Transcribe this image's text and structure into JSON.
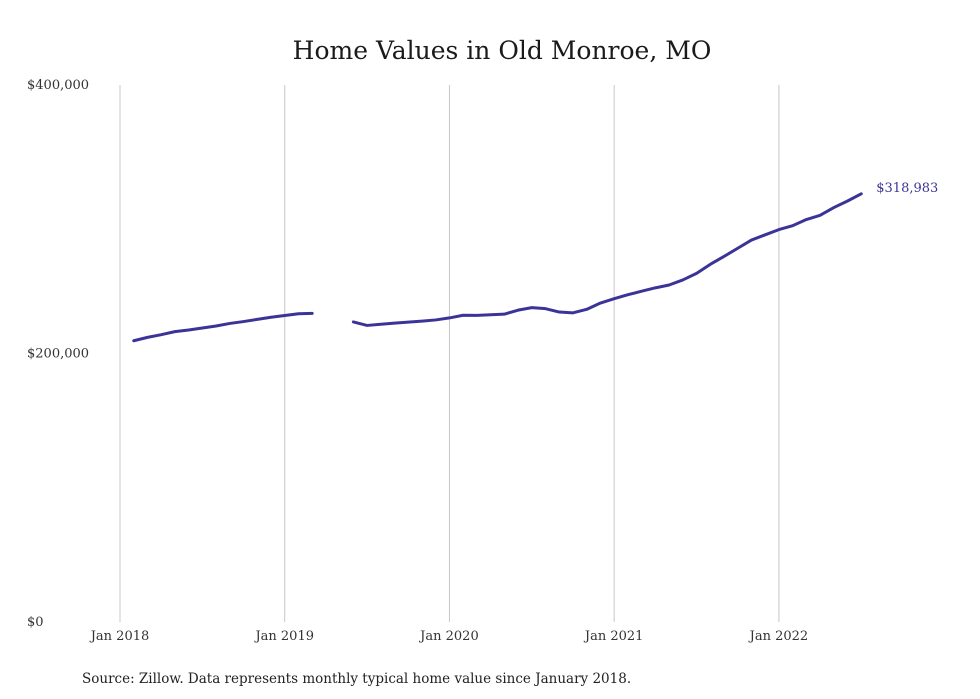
{
  "chart_data": {
    "type": "line",
    "title": "Home Values in Old Monroe, MO",
    "xlabel": "",
    "ylabel": "",
    "ylim": [
      0,
      400000
    ],
    "xlim": [
      "2018-01",
      "2022-08"
    ],
    "y_ticks": [
      0,
      200000,
      400000
    ],
    "y_tick_labels": [
      "$0",
      "$200,000",
      "$400,000"
    ],
    "x_ticks": [
      "2018-01",
      "2019-01",
      "2020-01",
      "2021-01",
      "2022-01"
    ],
    "x_tick_labels": [
      "Jan 2018",
      "Jan 2019",
      "Jan 2020",
      "Jan 2021",
      "Jan 2022"
    ],
    "grid": {
      "vertical": true,
      "horizontal": false
    },
    "legend": "none",
    "line_color": "#3b3498",
    "grid_color": "#c8c8c8",
    "series": [
      {
        "values": [
          {
            "x": "2018-02",
            "y": 209500
          },
          {
            "x": "2018-03",
            "y": 212000
          },
          {
            "x": "2018-04",
            "y": 214000
          },
          {
            "x": "2018-05",
            "y": 216300
          },
          {
            "x": "2018-06",
            "y": 217500
          },
          {
            "x": "2018-07",
            "y": 219000
          },
          {
            "x": "2018-08",
            "y": 220500
          },
          {
            "x": "2018-09",
            "y": 222400
          },
          {
            "x": "2018-10",
            "y": 223800
          },
          {
            "x": "2018-11",
            "y": 225400
          },
          {
            "x": "2018-12",
            "y": 227000
          },
          {
            "x": "2019-01",
            "y": 228300
          },
          {
            "x": "2019-02",
            "y": 229600
          },
          {
            "x": "2019-03",
            "y": 229900
          },
          {
            "x": "2019-04",
            "y": null
          },
          {
            "x": "2019-05",
            "y": null
          },
          {
            "x": "2019-06",
            "y": 223500
          },
          {
            "x": "2019-07",
            "y": 220900
          },
          {
            "x": "2019-08",
            "y": 221800
          },
          {
            "x": "2019-09",
            "y": 222600
          },
          {
            "x": "2019-10",
            "y": 223400
          },
          {
            "x": "2019-11",
            "y": 224100
          },
          {
            "x": "2019-12",
            "y": 225000
          },
          {
            "x": "2020-01",
            "y": 226500
          },
          {
            "x": "2020-02",
            "y": 228500
          },
          {
            "x": "2020-03",
            "y": 228400
          },
          {
            "x": "2020-04",
            "y": 228900
          },
          {
            "x": "2020-05",
            "y": 229300
          },
          {
            "x": "2020-06",
            "y": 232300
          },
          {
            "x": "2020-07",
            "y": 234200
          },
          {
            "x": "2020-08",
            "y": 233400
          },
          {
            "x": "2020-09",
            "y": 230900
          },
          {
            "x": "2020-10",
            "y": 230300
          },
          {
            "x": "2020-11",
            "y": 232900
          },
          {
            "x": "2020-12",
            "y": 237600
          },
          {
            "x": "2021-01",
            "y": 240800
          },
          {
            "x": "2021-02",
            "y": 243800
          },
          {
            "x": "2021-03",
            "y": 246400
          },
          {
            "x": "2021-04",
            "y": 248900
          },
          {
            "x": "2021-05",
            "y": 251000
          },
          {
            "x": "2021-06",
            "y": 254800
          },
          {
            "x": "2021-07",
            "y": 259700
          },
          {
            "x": "2021-08",
            "y": 266400
          },
          {
            "x": "2021-09",
            "y": 272300
          },
          {
            "x": "2021-10",
            "y": 278400
          },
          {
            "x": "2021-11",
            "y": 284500
          },
          {
            "x": "2021-12",
            "y": 288400
          },
          {
            "x": "2022-01",
            "y": 292300
          },
          {
            "x": "2022-02",
            "y": 295200
          },
          {
            "x": "2022-03",
            "y": 299800
          },
          {
            "x": "2022-04",
            "y": 302900
          },
          {
            "x": "2022-05",
            "y": 308700
          },
          {
            "x": "2022-06",
            "y": 313600
          },
          {
            "x": "2022-07",
            "y": 318983
          }
        ],
        "end_label": "$318,983"
      }
    ]
  },
  "source_note": "Source: Zillow. Data represents monthly typical home value since January 2018."
}
